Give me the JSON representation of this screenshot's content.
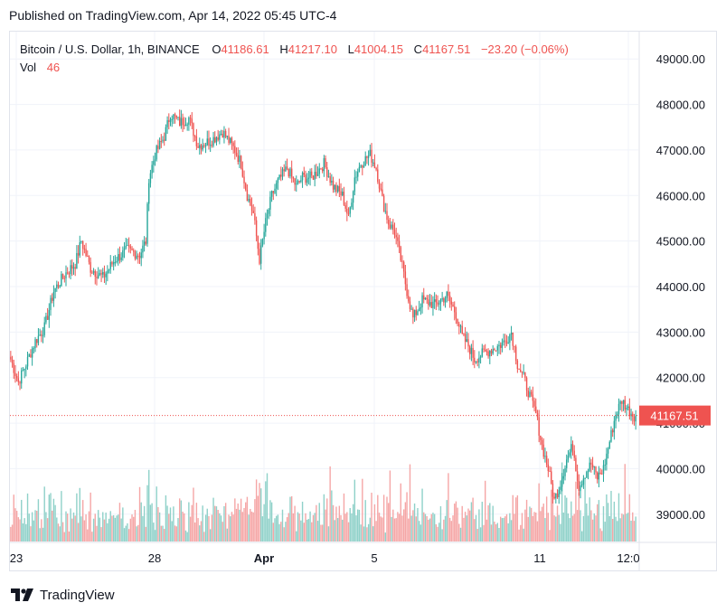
{
  "published_text": "Published on TradingView.com, Apr 14, 2022 05:45 UTC-4",
  "legend": {
    "symbol": "Bitcoin / U.S. Dollar, 1h, BINANCE",
    "o_label": "O",
    "o_value": "41186.61",
    "h_label": "H",
    "h_value": "41217.10",
    "l_label": "L",
    "l_value": "41004.15",
    "c_label": "C",
    "c_value": "41167.51",
    "change": "−23.20 (−0.06%)",
    "vol_label": "Vol",
    "vol_value": "46"
  },
  "price_label": "41167.51",
  "brand": "TradingView",
  "colors": {
    "up": "#26a69a",
    "down": "#ef5350",
    "up_vol": "#8fd1c9",
    "down_vol": "#f5a6a6",
    "grid": "#f0f3fa",
    "axis_text": "#131722"
  },
  "chart_data": {
    "type": "candlestick",
    "ylim": [
      38400,
      49600
    ],
    "y_ticks": [
      "39000.00",
      "40000.00",
      "41000.00",
      "42000.00",
      "43000.00",
      "44000.00",
      "45000.00",
      "46000.00",
      "47000.00",
      "48000.00",
      "49000.00"
    ],
    "x_ticks": [
      "23",
      "28",
      "Apr",
      "5",
      "11",
      "12:0"
    ],
    "last_price": 41167.51,
    "close_path": [
      [
        0,
        42400
      ],
      [
        5,
        41900
      ],
      [
        10,
        42300
      ],
      [
        16,
        42800
      ],
      [
        22,
        43100
      ],
      [
        28,
        43900
      ],
      [
        36,
        44300
      ],
      [
        42,
        44500
      ],
      [
        46,
        45000
      ],
      [
        52,
        44400
      ],
      [
        60,
        44200
      ],
      [
        68,
        44600
      ],
      [
        76,
        44800
      ],
      [
        84,
        44700
      ],
      [
        88,
        45000
      ],
      [
        90,
        46400
      ],
      [
        94,
        46900
      ],
      [
        100,
        47300
      ],
      [
        104,
        47800
      ],
      [
        110,
        47600
      ],
      [
        116,
        47700
      ],
      [
        122,
        47100
      ],
      [
        130,
        47200
      ],
      [
        138,
        47400
      ],
      [
        146,
        47000
      ],
      [
        150,
        46700
      ],
      [
        154,
        46000
      ],
      [
        158,
        45600
      ],
      [
        162,
        44600
      ],
      [
        166,
        45400
      ],
      [
        170,
        46000
      ],
      [
        174,
        46300
      ],
      [
        180,
        46600
      ],
      [
        186,
        46200
      ],
      [
        190,
        46400
      ],
      [
        196,
        46400
      ],
      [
        204,
        46700
      ],
      [
        210,
        46200
      ],
      [
        216,
        46000
      ],
      [
        220,
        45500
      ],
      [
        224,
        46400
      ],
      [
        228,
        46700
      ],
      [
        234,
        46900
      ],
      [
        238,
        46600
      ],
      [
        242,
        45900
      ],
      [
        246,
        45400
      ],
      [
        250,
        45200
      ],
      [
        254,
        44600
      ],
      [
        258,
        43900
      ],
      [
        262,
        43300
      ],
      [
        268,
        43700
      ],
      [
        276,
        43600
      ],
      [
        284,
        43800
      ],
      [
        290,
        43400
      ],
      [
        294,
        42900
      ],
      [
        298,
        42700
      ],
      [
        302,
        42400
      ],
      [
        306,
        42500
      ],
      [
        312,
        42600
      ],
      [
        318,
        42700
      ],
      [
        322,
        42800
      ],
      [
        326,
        43000
      ],
      [
        330,
        42300
      ],
      [
        334,
        42000
      ],
      [
        338,
        41600
      ],
      [
        342,
        41200
      ],
      [
        346,
        40500
      ],
      [
        350,
        40000
      ],
      [
        354,
        39300
      ],
      [
        358,
        39700
      ],
      [
        362,
        40200
      ],
      [
        366,
        40500
      ],
      [
        370,
        39600
      ],
      [
        374,
        39900
      ],
      [
        378,
        40100
      ],
      [
        382,
        39800
      ],
      [
        386,
        40000
      ],
      [
        390,
        40600
      ],
      [
        394,
        41200
      ],
      [
        398,
        41500
      ],
      [
        402,
        41300
      ],
      [
        406,
        41167
      ]
    ]
  }
}
